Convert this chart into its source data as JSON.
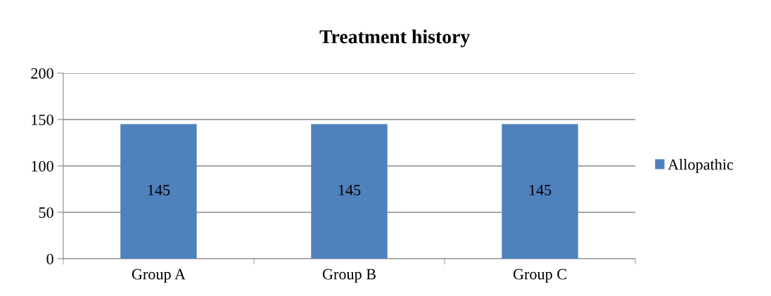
{
  "chart_data": {
    "type": "bar",
    "title": "Treatment history",
    "categories": [
      "Group A",
      "Group B",
      "Group C"
    ],
    "series": [
      {
        "name": "Allopathic",
        "color": "#4f81bd",
        "values": [
          145,
          145,
          145
        ]
      }
    ],
    "ylim": [
      0,
      200
    ],
    "yticks": [
      0,
      50,
      100,
      150,
      200
    ],
    "grid": "y",
    "legend": "right",
    "data_labels": true
  }
}
